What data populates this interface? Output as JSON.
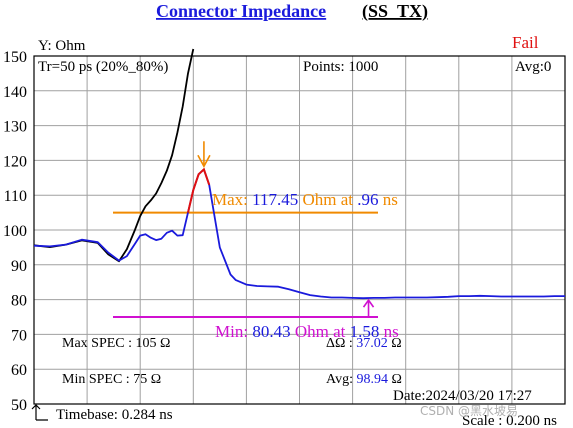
{
  "header": {
    "title": "Connector  Impedance",
    "title_suffix": "(SS_TX)",
    "title_color": "#1a1adc",
    "status": "Fail",
    "status_color": "#e01010"
  },
  "panel": {
    "y_unit": "Y: Ohm",
    "rise_time": "Tr=50  ps (20%_80%)",
    "points": "Points: 1000",
    "avg": "Avg:0",
    "max_spec": "Max SPEC : 105 Ω",
    "min_spec": "Min  SPEC : 75  Ω",
    "delta_label": "ΔΩ : ",
    "delta_value": "37.02",
    "delta_unit": " Ω",
    "avg_label": "Avg: ",
    "avg_value": "98.94",
    "avg_unit": " Ω",
    "date": "Date:2024/03/20 17:27",
    "timebase": "Timebase: 0.284  ns",
    "scale": "Scale : 0.200 ns",
    "watermark": "CSDN @黑水坡易"
  },
  "annotations": {
    "max_prefix": "Max: ",
    "max_value": "117.45",
    "max_mid": "  Ohm at ",
    "max_time": ".96",
    "max_suffix": "  ns",
    "min_prefix": "Min: ",
    "min_value": "80.43",
    "min_mid": "  Ohm at ",
    "min_time": "1.58",
    "min_suffix": "  ns",
    "max_color": "#f08a00",
    "min_color": "#d010d0",
    "value_color": "#1a1adc"
  },
  "chart_data": {
    "type": "line",
    "ylim": [
      50,
      150
    ],
    "yticks": [
      "50",
      "60",
      "70",
      "80",
      "90",
      "100",
      "110",
      "120",
      "130",
      "140",
      "150"
    ],
    "x_divisions": 10,
    "spec_limits": {
      "max": 105,
      "min": 75
    },
    "max_point": {
      "value": 117.45,
      "time": 0.96
    },
    "min_point": {
      "value": 80.43,
      "time": 1.58
    },
    "series": [
      {
        "color": "#1a1adc",
        "x_div": [
          0,
          0.3,
          0.6,
          0.9,
          1.2,
          1.4,
          1.6,
          1.75,
          1.9,
          2.0,
          2.1,
          2.2,
          2.3,
          2.4,
          2.5,
          2.6,
          2.7,
          2.8,
          2.9,
          3.0,
          3.1,
          3.2,
          3.3,
          3.4,
          3.5,
          3.7,
          3.8,
          4.0,
          4.2,
          4.4,
          4.6,
          4.8,
          5.0,
          5.2,
          5.4,
          5.6,
          5.8,
          6.0,
          6.2,
          6.4,
          6.6,
          6.8,
          7.0,
          7.2,
          7.4,
          7.6,
          7.8,
          8.0,
          8.2,
          8.4,
          8.6,
          8.8,
          9.0,
          9.2,
          9.4,
          9.6,
          9.8,
          10.0
        ],
        "y": [
          95.5,
          95.3,
          95.8,
          97.2,
          96.5,
          93.5,
          91.2,
          92.5,
          96.0,
          98.4,
          98.8,
          97.8,
          97.1,
          97.5,
          99.2,
          99.8,
          98.4,
          98.5,
          105.0,
          111.5,
          116.0,
          117.4,
          113.0,
          104.0,
          95.0,
          87.2,
          85.6,
          84.3,
          83.9,
          83.8,
          83.7,
          83.0,
          82.1,
          81.3,
          80.9,
          80.6,
          80.6,
          80.5,
          80.4,
          80.5,
          80.5,
          80.6,
          80.6,
          80.6,
          80.6,
          80.7,
          80.8,
          81.0,
          81.0,
          81.1,
          81.0,
          80.9,
          80.9,
          80.9,
          80.9,
          80.9,
          81.0,
          81.0
        ]
      },
      {
        "color": "#000000",
        "x_div": [
          0,
          0.3,
          0.6,
          0.9,
          1.2,
          1.4,
          1.6,
          1.75,
          1.9,
          2.0,
          2.1,
          2.2,
          2.3,
          2.4,
          2.5,
          2.6,
          2.7,
          2.8,
          2.9,
          3.0
        ],
        "y": [
          95.6,
          95.1,
          95.8,
          97.0,
          96.3,
          93.0,
          91.0,
          94.5,
          100.0,
          104.0,
          106.8,
          108.5,
          110.5,
          113.5,
          117.0,
          121.5,
          128.0,
          135.5,
          145.0,
          155.0
        ]
      }
    ]
  }
}
